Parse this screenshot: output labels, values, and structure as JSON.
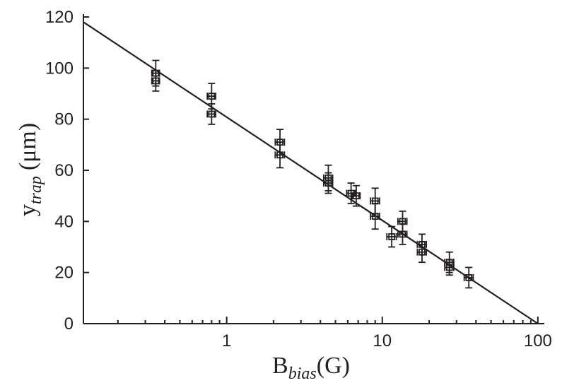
{
  "chart_data": {
    "type": "scatter",
    "x_scale": "log",
    "xlim": [
      0.12,
      110
    ],
    "ylim": [
      0,
      120
    ],
    "xlabel": {
      "main": "B",
      "sub": "bias",
      "unit": "(G)"
    },
    "ylabel": {
      "main": "y",
      "sub": "trap",
      "unit": "(μm)"
    },
    "x_ticks": [
      {
        "value": 1,
        "label": "1"
      },
      {
        "value": 10,
        "label": "10"
      },
      {
        "value": 100,
        "label": "100"
      }
    ],
    "y_ticks": [
      {
        "value": 0,
        "label": "0"
      },
      {
        "value": 20,
        "label": "20"
      },
      {
        "value": 40,
        "label": "40"
      },
      {
        "value": 60,
        "label": "60"
      },
      {
        "value": 80,
        "label": "80"
      },
      {
        "value": 100,
        "label": "100"
      },
      {
        "value": 120,
        "label": "120"
      }
    ],
    "fit_line": {
      "x": [
        0.12,
        100
      ],
      "y": [
        118,
        0
      ]
    },
    "points": [
      {
        "x": 0.35,
        "y": 98,
        "xerr": 0.02,
        "yerr": 5
      },
      {
        "x": 0.35,
        "y": 95,
        "xerr": 0.02,
        "yerr": 4
      },
      {
        "x": 0.8,
        "y": 89,
        "xerr": 0.05,
        "yerr": 5
      },
      {
        "x": 0.8,
        "y": 82,
        "xerr": 0.05,
        "yerr": 4
      },
      {
        "x": 2.2,
        "y": 71,
        "xerr": 0.15,
        "yerr": 5
      },
      {
        "x": 2.2,
        "y": 66,
        "xerr": 0.15,
        "yerr": 5
      },
      {
        "x": 4.5,
        "y": 57,
        "xerr": 0.3,
        "yerr": 5
      },
      {
        "x": 4.5,
        "y": 55,
        "xerr": 0.3,
        "yerr": 4
      },
      {
        "x": 6.3,
        "y": 51,
        "xerr": 0.4,
        "yerr": 4
      },
      {
        "x": 6.8,
        "y": 50,
        "xerr": 0.4,
        "yerr": 4
      },
      {
        "x": 9,
        "y": 48,
        "xerr": 0.6,
        "yerr": 5
      },
      {
        "x": 9,
        "y": 42,
        "xerr": 0.6,
        "yerr": 5
      },
      {
        "x": 11.5,
        "y": 34,
        "xerr": 0.8,
        "yerr": 4
      },
      {
        "x": 13.5,
        "y": 40,
        "xerr": 0.9,
        "yerr": 4
      },
      {
        "x": 13.5,
        "y": 35,
        "xerr": 0.9,
        "yerr": 4
      },
      {
        "x": 18,
        "y": 31,
        "xerr": 1.2,
        "yerr": 4
      },
      {
        "x": 18,
        "y": 28,
        "xerr": 1.2,
        "yerr": 4
      },
      {
        "x": 27,
        "y": 24,
        "xerr": 1.8,
        "yerr": 4
      },
      {
        "x": 27,
        "y": 22,
        "xerr": 1.8,
        "yerr": 3
      },
      {
        "x": 36,
        "y": 18,
        "xerr": 2.4,
        "yerr": 4
      }
    ]
  }
}
